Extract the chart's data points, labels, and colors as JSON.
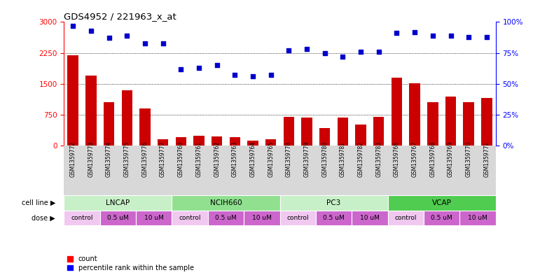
{
  "title": "GDS4952 / 221963_x_at",
  "sample_ids": [
    "GSM1359772",
    "GSM1359773",
    "GSM1359774",
    "GSM1359775",
    "GSM1359776",
    "GSM1359777",
    "GSM1359760",
    "GSM1359761",
    "GSM1359762",
    "GSM1359763",
    "GSM1359764",
    "GSM1359765",
    "GSM1359778",
    "GSM1359779",
    "GSM1359780",
    "GSM1359781",
    "GSM1359782",
    "GSM1359783",
    "GSM1359766",
    "GSM1359767",
    "GSM1359768",
    "GSM1359769",
    "GSM1359770",
    "GSM1359771"
  ],
  "counts": [
    2200,
    1700,
    1050,
    1350,
    900,
    150,
    200,
    250,
    230,
    200,
    130,
    150,
    700,
    680,
    430,
    680,
    520,
    700,
    1650,
    1520,
    1050,
    1200,
    1050,
    1150
  ],
  "percentile_ranks": [
    97,
    93,
    87,
    89,
    83,
    83,
    62,
    63,
    65,
    57,
    56,
    57,
    77,
    78,
    75,
    72,
    76,
    76,
    91,
    92,
    89,
    89,
    88,
    88
  ],
  "cell_lines": [
    {
      "name": "LNCAP",
      "start": 0,
      "end": 6,
      "color": "#c8f0c8"
    },
    {
      "name": "NCIH660",
      "start": 6,
      "end": 12,
      "color": "#90e090"
    },
    {
      "name": "PC3",
      "start": 12,
      "end": 18,
      "color": "#c8f0c8"
    },
    {
      "name": "VCAP",
      "start": 18,
      "end": 24,
      "color": "#50cc50"
    }
  ],
  "dose_groups": [
    {
      "name": "control",
      "start": 0,
      "end": 2,
      "color": "#f0c8f0"
    },
    {
      "name": "0.5 uM",
      "start": 2,
      "end": 4,
      "color": "#cc66cc"
    },
    {
      "name": "10 uM",
      "start": 4,
      "end": 6,
      "color": "#cc66cc"
    },
    {
      "name": "control",
      "start": 6,
      "end": 8,
      "color": "#f0c8f0"
    },
    {
      "name": "0.5 uM",
      "start": 8,
      "end": 10,
      "color": "#cc66cc"
    },
    {
      "name": "10 uM",
      "start": 10,
      "end": 12,
      "color": "#cc66cc"
    },
    {
      "name": "control",
      "start": 12,
      "end": 14,
      "color": "#f0c8f0"
    },
    {
      "name": "0.5 uM",
      "start": 14,
      "end": 16,
      "color": "#cc66cc"
    },
    {
      "name": "10 uM",
      "start": 16,
      "end": 18,
      "color": "#cc66cc"
    },
    {
      "name": "control",
      "start": 18,
      "end": 20,
      "color": "#f0c8f0"
    },
    {
      "name": "0.5 uM",
      "start": 20,
      "end": 22,
      "color": "#cc66cc"
    },
    {
      "name": "10 uM",
      "start": 22,
      "end": 24,
      "color": "#cc66cc"
    }
  ],
  "bar_color": "#cc0000",
  "dot_color": "#0000cc",
  "ylim_left": [
    0,
    3000
  ],
  "ylim_right": [
    0,
    100
  ],
  "yticks_left": [
    0,
    750,
    1500,
    2250,
    3000
  ],
  "yticks_right": [
    0,
    25,
    50,
    75,
    100
  ],
  "ytick_labels_right": [
    "0%",
    "25%",
    "50%",
    "75%",
    "100%"
  ],
  "grid_values": [
    750,
    1500,
    2250
  ],
  "background_color": "#ffffff",
  "plot_bg_color": "#ffffff",
  "xticklabel_bg": "#d8d8d8"
}
